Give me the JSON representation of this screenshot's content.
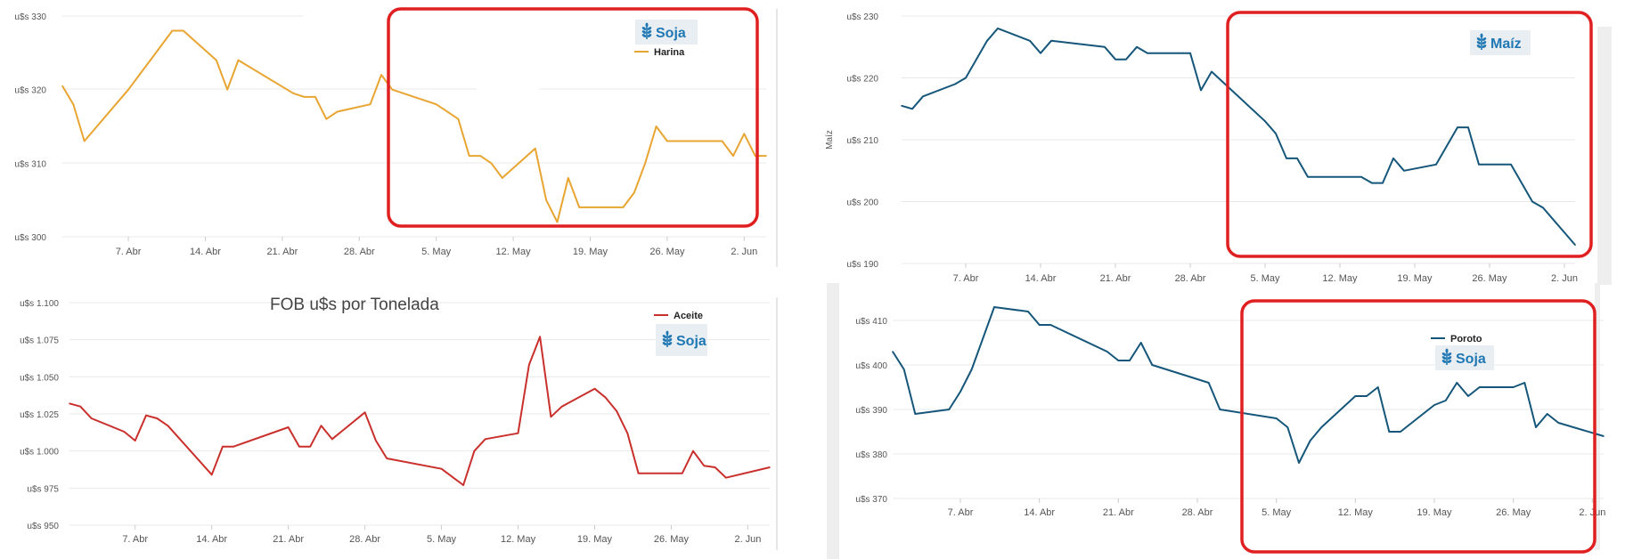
{
  "chart_data": [
    {
      "id": "harina",
      "type": "line",
      "series": [
        {
          "name": "Harina",
          "color": "#e8a531"
        }
      ],
      "logo_text": "Soja",
      "logo_icon": "wheat-icon",
      "x_ticks": [
        "7. Abr",
        "14. Abr",
        "21. Abr",
        "28. Abr",
        "5. May",
        "12. May",
        "19. May",
        "26. May",
        "2. Jun"
      ],
      "y_ticks": [
        "u$s 300",
        "u$s 310",
        "u$s 320",
        "u$s 330"
      ],
      "ylim": [
        300,
        330
      ],
      "xlim": [
        1,
        65
      ],
      "highlight_box": {
        "color": "#e02020",
        "from_day": 35.5,
        "to_day": 63.5
      },
      "points": [
        [
          1,
          320.5
        ],
        [
          2,
          318
        ],
        [
          3,
          313
        ],
        [
          7,
          320
        ],
        [
          8,
          322
        ],
        [
          9,
          324
        ],
        [
          11,
          328
        ],
        [
          12,
          328
        ],
        [
          15,
          324
        ],
        [
          16,
          320
        ],
        [
          17,
          324
        ],
        [
          22,
          319.5
        ],
        [
          23,
          319
        ],
        [
          24,
          319
        ],
        [
          25,
          316
        ],
        [
          26,
          317
        ],
        [
          29,
          318
        ],
        [
          30,
          322
        ],
        [
          31,
          320
        ],
        [
          35,
          318
        ],
        [
          37,
          316
        ],
        [
          38,
          311
        ],
        [
          39,
          311
        ],
        [
          40,
          310
        ],
        [
          41,
          308
        ],
        [
          44,
          312
        ],
        [
          45,
          305
        ],
        [
          46,
          302
        ],
        [
          47,
          308
        ],
        [
          48,
          304
        ],
        [
          52,
          304
        ],
        [
          53,
          306
        ],
        [
          54,
          310
        ],
        [
          55,
          315
        ],
        [
          56,
          313
        ],
        [
          61,
          313
        ],
        [
          62,
          311
        ],
        [
          63,
          314
        ],
        [
          64,
          311
        ],
        [
          65,
          311
        ]
      ]
    },
    {
      "id": "maiz",
      "type": "line",
      "series": [
        {
          "name": "Maíz",
          "color": "#15567a"
        }
      ],
      "logo_text": "Maíz",
      "logo_icon": "wheat-icon",
      "ylabel": "Maíz",
      "x_ticks": [
        "7. Abr",
        "14. Abr",
        "21. Abr",
        "28. Abr",
        "5. May",
        "12. May",
        "19. May",
        "26. May",
        "2. Jun"
      ],
      "y_ticks": [
        "u$s 190",
        "u$s 200",
        "u$s 210",
        "u$s 220",
        "u$s 230"
      ],
      "ylim": [
        190,
        230
      ],
      "xlim": [
        1,
        64
      ],
      "highlight_box": {
        "color": "#e02020",
        "from_day": 33.5,
        "to_day": 65.2
      },
      "points": [
        [
          1,
          215.5
        ],
        [
          2,
          215
        ],
        [
          3,
          217
        ],
        [
          6,
          219
        ],
        [
          7,
          220
        ],
        [
          9,
          226
        ],
        [
          10,
          228
        ],
        [
          13,
          226
        ],
        [
          14,
          224
        ],
        [
          15,
          226
        ],
        [
          20,
          225
        ],
        [
          21,
          223
        ],
        [
          22,
          223
        ],
        [
          23,
          225
        ],
        [
          24,
          224
        ],
        [
          28,
          224
        ],
        [
          29,
          218
        ],
        [
          30,
          221
        ],
        [
          35,
          213
        ],
        [
          36,
          211
        ],
        [
          37,
          207
        ],
        [
          38,
          207
        ],
        [
          39,
          204
        ],
        [
          44,
          204
        ],
        [
          45,
          203
        ],
        [
          46,
          203
        ],
        [
          47,
          207
        ],
        [
          48,
          205
        ],
        [
          51,
          206
        ],
        [
          53,
          212
        ],
        [
          54,
          212
        ],
        [
          55,
          206
        ],
        [
          58,
          206
        ],
        [
          60,
          200
        ],
        [
          61,
          199
        ],
        [
          62,
          197
        ],
        [
          64,
          193
        ]
      ]
    },
    {
      "id": "aceite",
      "type": "line",
      "title": "FOB u$s por Tonelada",
      "series": [
        {
          "name": "Aceite",
          "color": "#c9302c"
        }
      ],
      "logo_text": "Soja",
      "logo_icon": "wheat-icon",
      "x_ticks": [
        "7. Abr",
        "14. Abr",
        "21. Abr",
        "28. Abr",
        "5. May",
        "12. May",
        "19. May",
        "26. May",
        "2. Jun"
      ],
      "y_ticks": [
        "u$s 950",
        "u$s 975",
        "u$s 1.000",
        "u$s 1.025",
        "u$s 1.050",
        "u$s 1.075",
        "u$s 1.100"
      ],
      "ylim": [
        950,
        1100
      ],
      "xlim": [
        1,
        65
      ],
      "points": [
        [
          1,
          1032
        ],
        [
          2,
          1030
        ],
        [
          3,
          1022
        ],
        [
          6,
          1013
        ],
        [
          7,
          1007
        ],
        [
          8,
          1024
        ],
        [
          9,
          1022
        ],
        [
          10,
          1017
        ],
        [
          14,
          984
        ],
        [
          15,
          1003
        ],
        [
          16,
          1003
        ],
        [
          21,
          1016
        ],
        [
          22,
          1003
        ],
        [
          23,
          1003
        ],
        [
          24,
          1017
        ],
        [
          25,
          1008
        ],
        [
          28,
          1026
        ],
        [
          29,
          1007
        ],
        [
          30,
          995
        ],
        [
          35,
          988
        ],
        [
          37,
          977
        ],
        [
          38,
          1000
        ],
        [
          39,
          1008
        ],
        [
          42,
          1012
        ],
        [
          43,
          1058
        ],
        [
          44,
          1077
        ],
        [
          45,
          1023
        ],
        [
          46,
          1030
        ],
        [
          49,
          1042
        ],
        [
          50,
          1036
        ],
        [
          51,
          1027
        ],
        [
          52,
          1012
        ],
        [
          53,
          985
        ],
        [
          56,
          985
        ],
        [
          57,
          985
        ],
        [
          58,
          1000
        ],
        [
          59,
          990
        ],
        [
          60,
          989
        ],
        [
          61,
          982
        ],
        [
          65,
          989
        ]
      ]
    },
    {
      "id": "poroto",
      "type": "line",
      "series": [
        {
          "name": "Poroto",
          "color": "#15567a"
        }
      ],
      "logo_text": "Soja",
      "logo_icon": "wheat-icon",
      "x_ticks": [
        "7. Abr",
        "14. Abr",
        "21. Abr",
        "28. Abr",
        "5. May",
        "12. May",
        "19. May",
        "26. May",
        "2. Jun"
      ],
      "y_ticks": [
        "u$s 370",
        "u$s 380",
        "u$s 390",
        "u$s 400",
        "u$s 410"
      ],
      "ylim": [
        370,
        410
      ],
      "xlim": [
        1,
        64
      ],
      "highlight_box": {
        "color": "#e02020",
        "from_day": 33.5,
        "to_day": 63.5
      },
      "points": [
        [
          1,
          403
        ],
        [
          2,
          399
        ],
        [
          3,
          389
        ],
        [
          6,
          390
        ],
        [
          7,
          394
        ],
        [
          8,
          399
        ],
        [
          10,
          413
        ],
        [
          13,
          412
        ],
        [
          14,
          409
        ],
        [
          15,
          409
        ],
        [
          20,
          403
        ],
        [
          21,
          401
        ],
        [
          22,
          401
        ],
        [
          23,
          405
        ],
        [
          24,
          400
        ],
        [
          29,
          396
        ],
        [
          30,
          390
        ],
        [
          35,
          388
        ],
        [
          36,
          386
        ],
        [
          37,
          378
        ],
        [
          38,
          383
        ],
        [
          39,
          386
        ],
        [
          42,
          393
        ],
        [
          43,
          393
        ],
        [
          44,
          395
        ],
        [
          45,
          385
        ],
        [
          46,
          385
        ],
        [
          49,
          391
        ],
        [
          50,
          392
        ],
        [
          51,
          396
        ],
        [
          52,
          393
        ],
        [
          53,
          395
        ],
        [
          56,
          395
        ],
        [
          57,
          396
        ],
        [
          58,
          386
        ],
        [
          59,
          389
        ],
        [
          60,
          387
        ],
        [
          64,
          384
        ]
      ]
    }
  ]
}
